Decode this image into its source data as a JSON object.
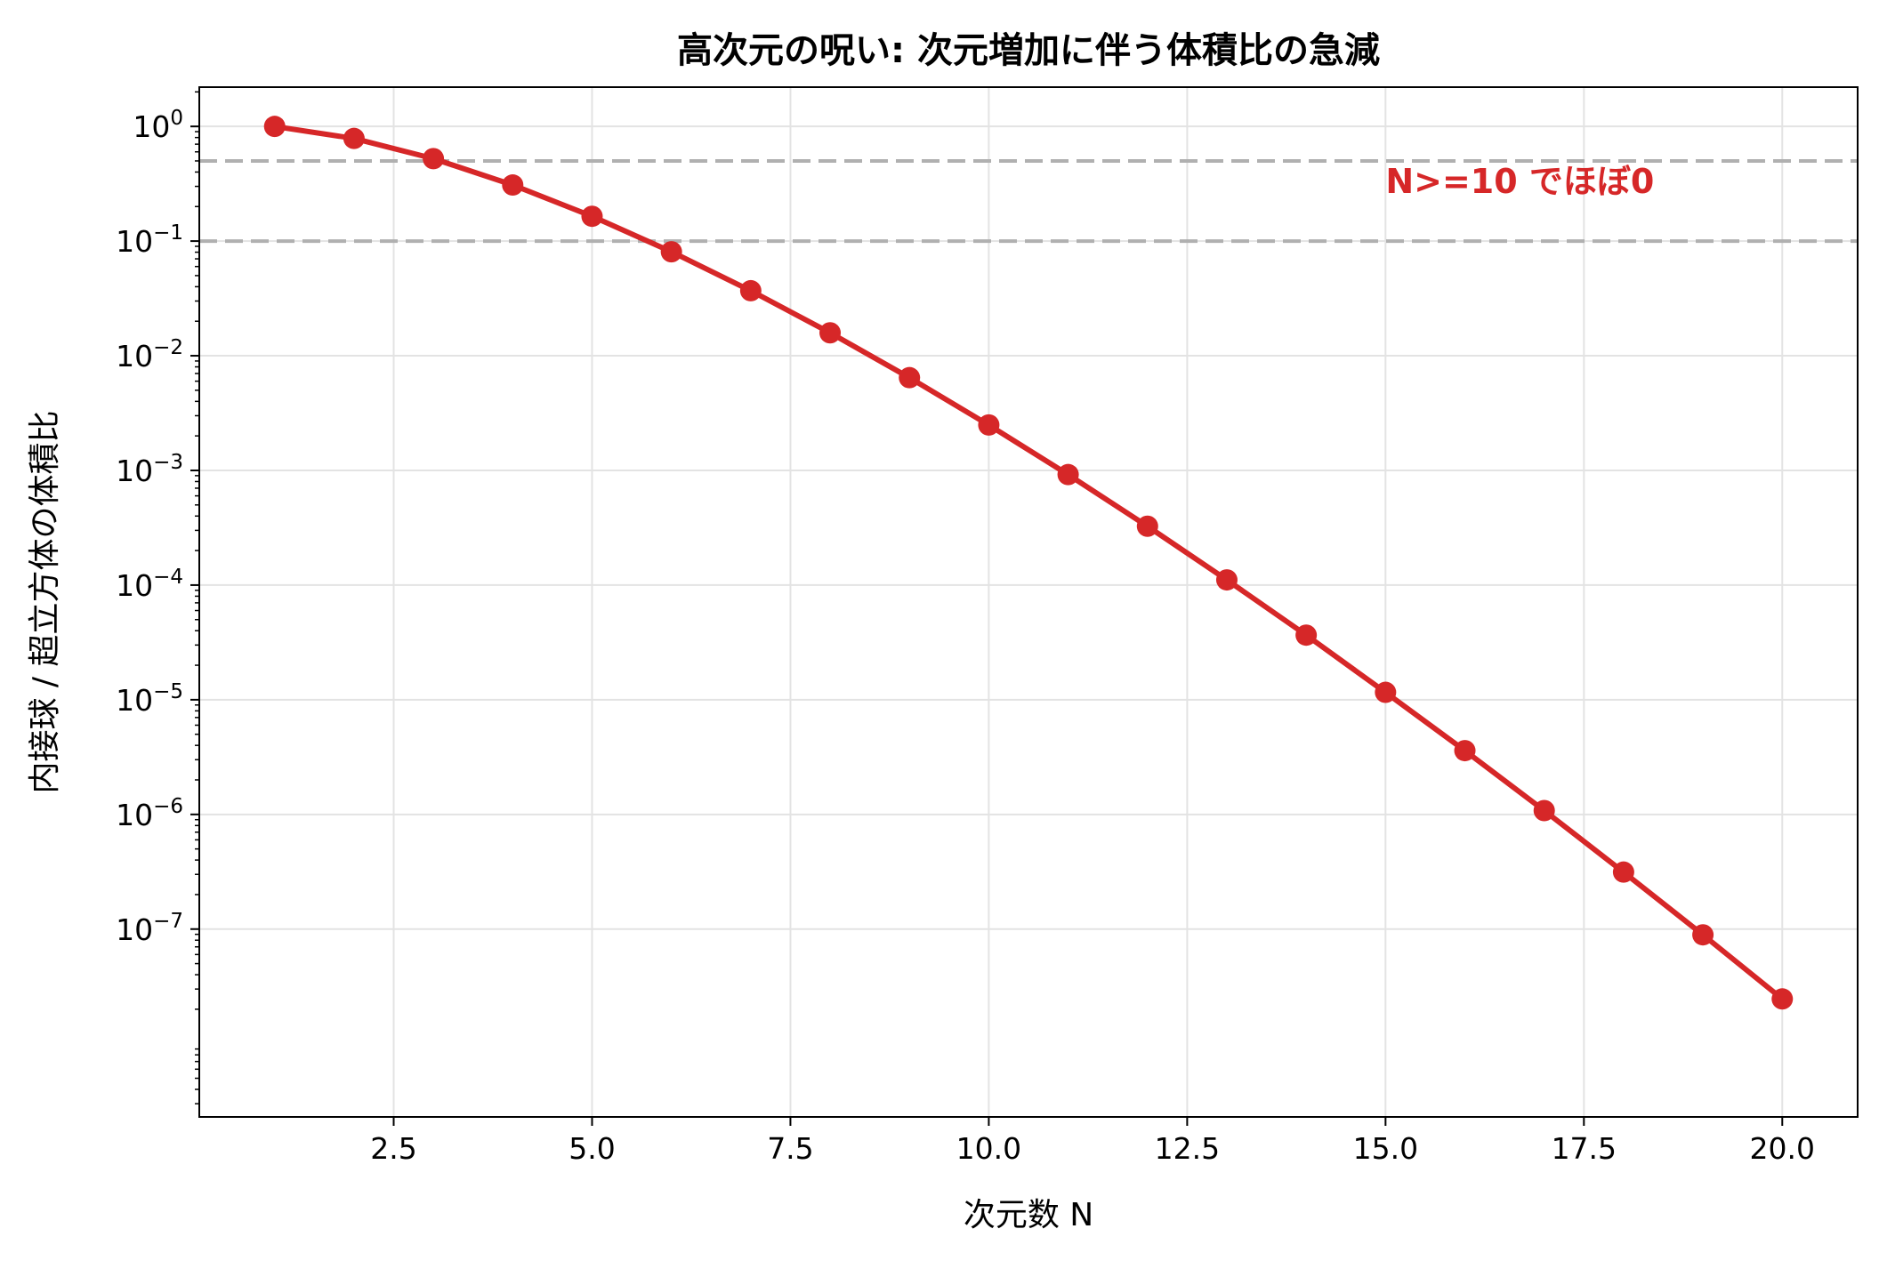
{
  "chart_data": {
    "type": "line",
    "title": "高次元の呪い: 次元増加に伴う体積比の急減",
    "xlabel": "次元数 N",
    "ylabel": "内接球 / 超立方体の体積比",
    "yscale": "log",
    "xlim": [
      0.05,
      20.95
    ],
    "ylim": [
      2.3e-09,
      2.2
    ],
    "xticks": [
      2.5,
      5.0,
      7.5,
      10.0,
      12.5,
      15.0,
      17.5,
      20.0
    ],
    "xtick_labels": [
      "2.5",
      "5.0",
      "7.5",
      "10.0",
      "12.5",
      "15.0",
      "17.5",
      "20.0"
    ],
    "ytick_exponents": [
      0,
      -1,
      -2,
      -3,
      -4,
      -5,
      -6,
      -7
    ],
    "ytick_base": "10",
    "grid": true,
    "colors": {
      "series": "#d62728",
      "reference_lines": "#b0b0b0",
      "grid": "#e3e3e3",
      "axes": "#000000"
    },
    "series": [
      {
        "x": [
          1,
          2,
          3,
          4,
          5,
          6,
          7,
          8,
          9,
          10,
          11,
          12,
          13,
          14,
          15,
          16,
          17,
          18,
          19,
          20
        ],
        "values": [
          1.0,
          0.7854,
          0.5236,
          0.3084,
          0.1645,
          0.0807,
          0.0369,
          0.01585,
          0.00644,
          0.00249,
          0.00092,
          0.000326,
          0.000111,
          3.66e-05,
          1.16e-05,
          3.6e-06,
          1.08e-06,
          3.14e-07,
          8.91e-08,
          2.46e-08
        ]
      }
    ],
    "reference_lines": [
      {
        "y": 0.5,
        "style": "dashed"
      },
      {
        "y": 0.1,
        "style": "dashed"
      }
    ],
    "annotations": [
      {
        "text": "N>=10 でほぼ0",
        "x": 15.0,
        "y": 0.33,
        "color": "#d62728"
      }
    ]
  }
}
